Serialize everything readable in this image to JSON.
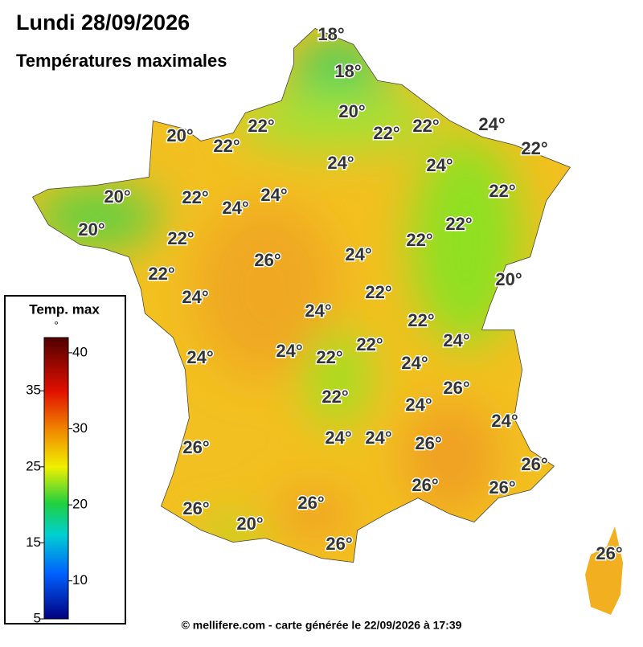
{
  "title": "Lundi 28/09/2026",
  "subtitle": "Températures maximales",
  "map": {
    "labels": [
      "18°",
      "18°",
      "20°",
      "22°",
      "22°",
      "22°",
      "24°",
      "22°",
      "20°",
      "22°",
      "24°",
      "24°",
      "20°",
      "22°",
      "24°",
      "24°",
      "22°",
      "20°",
      "22°",
      "22°",
      "22°",
      "26°",
      "24°",
      "22°",
      "20°",
      "22°",
      "24°",
      "24°",
      "22°",
      "24°",
      "24°",
      "22°",
      "22°",
      "24°",
      "24°",
      "26°",
      "22°",
      "24°",
      "24°",
      "26°",
      "24°",
      "24°",
      "26°",
      "26°",
      "26°",
      "26°",
      "26°",
      "20°",
      "26°",
      "26°",
      "26°"
    ]
  },
  "legend": {
    "title": "Temp. max",
    "unit": "°",
    "range": [
      5,
      42
    ],
    "ticks": [
      5,
      10,
      15,
      20,
      25,
      30,
      35,
      40
    ]
  },
  "footer": "© mellifere.com - carte générée le 22/09/2026 à 17:39"
}
